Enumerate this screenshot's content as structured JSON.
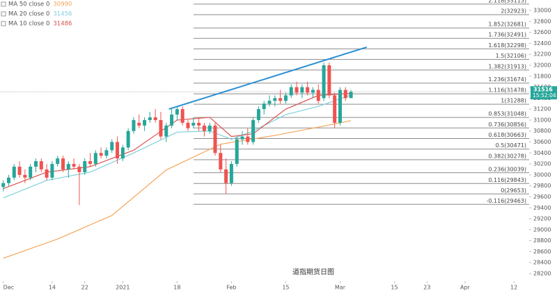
{
  "chart_data": {
    "type": "candlestick",
    "x": [
      0,
      1,
      2,
      3,
      4,
      5,
      6,
      7,
      8,
      9,
      10,
      11,
      12,
      13,
      14,
      15,
      16,
      17,
      18,
      19,
      20,
      21,
      22,
      23,
      24,
      25,
      26,
      27,
      28,
      29,
      30,
      31,
      32,
      33,
      34,
      35,
      36,
      37,
      38,
      39,
      40,
      41,
      42,
      43,
      44,
      45,
      46,
      47,
      48,
      49,
      50,
      51,
      52,
      53,
      54,
      55,
      56,
      57,
      58,
      59,
      60,
      61,
      62,
      63,
      64
    ],
    "open": [
      29780,
      29850,
      29950,
      30150,
      30000,
      29950,
      30150,
      30250,
      30100,
      29950,
      30200,
      30300,
      30100,
      30200,
      30150,
      30050,
      30250,
      30200,
      30400,
      30350,
      30450,
      30600,
      30300,
      30500,
      30800,
      30950,
      30900,
      31000,
      31050,
      31000,
      30700,
      30900,
      31100,
      31200,
      30950,
      30900,
      30950,
      30900,
      30800,
      30900,
      30400,
      30100,
      29850,
      30200,
      30650,
      30700,
      30600,
      31000,
      31200,
      31300,
      31350,
      31400,
      31350,
      31450,
      31600,
      31500,
      31600,
      31500,
      31550,
      31400,
      32000,
      31450,
      30950,
      31550,
      31400
    ],
    "high": [
      29900,
      30000,
      30200,
      30250,
      30100,
      30200,
      30300,
      30300,
      30200,
      30250,
      30350,
      30350,
      30250,
      30300,
      30200,
      30300,
      30400,
      30450,
      30500,
      30500,
      30650,
      30700,
      30550,
      30850,
      31050,
      31100,
      31050,
      31150,
      31200,
      31150,
      30950,
      31200,
      31250,
      31250,
      31000,
      31050,
      31050,
      30950,
      30950,
      30950,
      30550,
      30300,
      30250,
      30700,
      30800,
      30850,
      31050,
      31250,
      31350,
      31450,
      31450,
      31550,
      31500,
      31650,
      31700,
      31650,
      31700,
      31600,
      31650,
      32050,
      32050,
      31500,
      31600,
      31600,
      31550
    ],
    "low": [
      29700,
      29800,
      29900,
      29950,
      29850,
      29900,
      30050,
      30050,
      29900,
      29900,
      30150,
      30050,
      29950,
      30100,
      29450,
      30000,
      30150,
      30150,
      30300,
      30300,
      30400,
      30200,
      30250,
      30450,
      30750,
      30850,
      30800,
      30950,
      30950,
      30650,
      30600,
      30850,
      31000,
      30900,
      30800,
      30850,
      30800,
      30700,
      30750,
      30350,
      30050,
      29650,
      29800,
      30150,
      30550,
      30550,
      30550,
      30950,
      31100,
      31250,
      31250,
      31300,
      31300,
      31400,
      31450,
      31400,
      31450,
      31400,
      31300,
      31350,
      31400,
      30850,
      30900,
      31350,
      31400
    ],
    "close": [
      29850,
      29950,
      30150,
      30000,
      29950,
      30150,
      30250,
      30100,
      29950,
      30200,
      30300,
      30100,
      30200,
      30150,
      30050,
      30250,
      30200,
      30400,
      30350,
      30450,
      30600,
      30300,
      30500,
      30800,
      31000,
      30900,
      31000,
      31050,
      31000,
      30700,
      30900,
      31100,
      31200,
      30950,
      30850,
      30950,
      30900,
      30800,
      30900,
      30400,
      30100,
      29850,
      30200,
      30650,
      30700,
      30600,
      31000,
      31200,
      31300,
      31350,
      31400,
      31350,
      31450,
      31600,
      31500,
      31600,
      31500,
      31550,
      31350,
      32000,
      31450,
      30950,
      31550,
      31400,
      31516
    ],
    "up_color": "#26a69a",
    "down_color": "#ef5350",
    "xlim": [
      -0.6,
      96.8
    ],
    "ylim": [
      28061,
      33190
    ],
    "yticks": [
      28200,
      28400,
      28600,
      28800,
      29000,
      29200,
      29400,
      29600,
      29800,
      30000,
      30200,
      30400,
      30600,
      30800,
      31000,
      31200,
      31400,
      31600,
      31800,
      32000,
      32200,
      32400,
      32600,
      32800,
      33000
    ],
    "xticks": [
      {
        "value": 0,
        "label": "Dec"
      },
      {
        "value": 9,
        "label": "14"
      },
      {
        "value": 15,
        "label": "22"
      },
      {
        "value": 22,
        "label": "2021"
      },
      {
        "value": 32,
        "label": "18"
      },
      {
        "value": 42,
        "label": "Feb"
      },
      {
        "value": 52,
        "label": "15"
      },
      {
        "value": 62,
        "label": "Mar"
      },
      {
        "value": 72,
        "label": "15"
      },
      {
        "value": 78,
        "label": "23"
      },
      {
        "value": 85,
        "label": "Apr"
      },
      {
        "value": 94,
        "label": "12"
      }
    ],
    "lines": [
      {
        "name": "MA 50 close 0",
        "last": 30990,
        "color": "#f5a55a",
        "x": [
          0,
          10,
          20,
          30,
          40,
          50,
          60,
          64
        ],
        "values": [
          28480,
          28830,
          29260,
          30090,
          30560,
          30720,
          30910,
          30990
        ]
      },
      {
        "name": "MA 20 close 0",
        "last": 31456,
        "color": "#7fd0dc",
        "x": [
          0,
          8,
          16,
          24,
          32,
          38,
          42,
          46,
          52,
          58,
          64
        ],
        "values": [
          29580,
          29900,
          30050,
          30400,
          30780,
          30800,
          30650,
          30800,
          31100,
          31250,
          31456
        ]
      },
      {
        "name": "MA 10 close 0",
        "last": 31486,
        "color": "#d9534f",
        "x": [
          0,
          8,
          16,
          24,
          32,
          38,
          42,
          46,
          52,
          58,
          64
        ],
        "values": [
          29750,
          30050,
          30150,
          30450,
          31000,
          31050,
          30700,
          30750,
          31200,
          31450,
          31486
        ]
      }
    ],
    "fib_levels": [
      {
        "label": "2.118(33115)",
        "value": 33115
      },
      {
        "label": "2(32923)",
        "value": 32923
      },
      {
        "label": "1.852(32681)",
        "value": 32681
      },
      {
        "label": "1.736(32491)",
        "value": 32491
      },
      {
        "label": "1.618(32298)",
        "value": 32298
      },
      {
        "label": "1.5(32106)",
        "value": 32106
      },
      {
        "label": "1.382(31913)",
        "value": 31913
      },
      {
        "label": "1.236(31674)",
        "value": 31674
      },
      {
        "label": "1.116(31478)",
        "value": 31478
      },
      {
        "label": "1(31288)",
        "value": 31288
      },
      {
        "label": "0.853(31048)",
        "value": 31048
      },
      {
        "label": "0.736(30856)",
        "value": 30856
      },
      {
        "label": "0.618(30663)",
        "value": 30663
      },
      {
        "label": "0.5(30471)",
        "value": 30471
      },
      {
        "label": "0.382(30278)",
        "value": 30278
      },
      {
        "label": "0.236(30039)",
        "value": 30039
      },
      {
        "label": "0.116(29843)",
        "value": 29843
      },
      {
        "label": "0(29653)",
        "value": 29653
      },
      {
        "label": "-0.116(29463)",
        "value": 29463
      }
    ],
    "trendline": {
      "color": "#2a8fd6",
      "x": [
        30.5,
        66.9
      ],
      "values": [
        31200,
        32330
      ]
    },
    "price_label": {
      "value": 31516,
      "time": "15:52:04",
      "color": "#26a69a"
    },
    "annotation": "道指期货日图"
  }
}
